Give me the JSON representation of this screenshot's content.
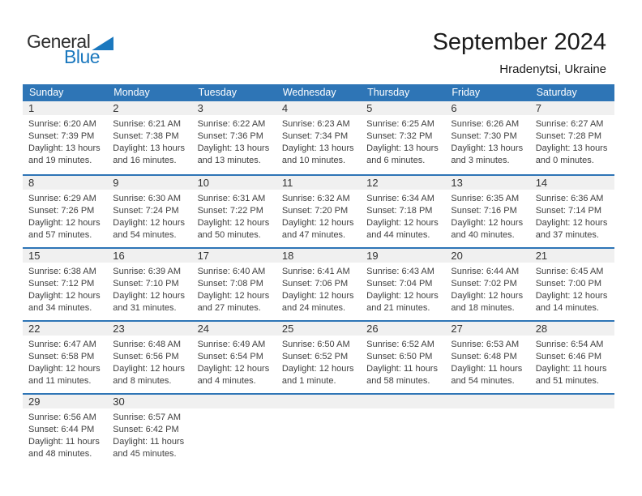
{
  "logo": {
    "general": "General",
    "blue": "Blue"
  },
  "header": {
    "title": "September 2024",
    "subtitle": "Hradenytsi, Ukraine"
  },
  "colors": {
    "accent": "#2E75B6",
    "band": "#F0F0F0",
    "logo_blue": "#1B78BE"
  },
  "icons": {
    "logo_triangle": "blue-right-triangle"
  },
  "weekday_headers": [
    "Sunday",
    "Monday",
    "Tuesday",
    "Wednesday",
    "Thursday",
    "Friday",
    "Saturday"
  ],
  "weeks": [
    [
      {
        "day": "1",
        "lines": [
          "Sunrise: 6:20 AM",
          "Sunset: 7:39 PM",
          "Daylight: 13 hours",
          "and 19 minutes."
        ]
      },
      {
        "day": "2",
        "lines": [
          "Sunrise: 6:21 AM",
          "Sunset: 7:38 PM",
          "Daylight: 13 hours",
          "and 16 minutes."
        ]
      },
      {
        "day": "3",
        "lines": [
          "Sunrise: 6:22 AM",
          "Sunset: 7:36 PM",
          "Daylight: 13 hours",
          "and 13 minutes."
        ]
      },
      {
        "day": "4",
        "lines": [
          "Sunrise: 6:23 AM",
          "Sunset: 7:34 PM",
          "Daylight: 13 hours",
          "and 10 minutes."
        ]
      },
      {
        "day": "5",
        "lines": [
          "Sunrise: 6:25 AM",
          "Sunset: 7:32 PM",
          "Daylight: 13 hours",
          "and 6 minutes."
        ]
      },
      {
        "day": "6",
        "lines": [
          "Sunrise: 6:26 AM",
          "Sunset: 7:30 PM",
          "Daylight: 13 hours",
          "and 3 minutes."
        ]
      },
      {
        "day": "7",
        "lines": [
          "Sunrise: 6:27 AM",
          "Sunset: 7:28 PM",
          "Daylight: 13 hours",
          "and 0 minutes."
        ]
      }
    ],
    [
      {
        "day": "8",
        "lines": [
          "Sunrise: 6:29 AM",
          "Sunset: 7:26 PM",
          "Daylight: 12 hours",
          "and 57 minutes."
        ]
      },
      {
        "day": "9",
        "lines": [
          "Sunrise: 6:30 AM",
          "Sunset: 7:24 PM",
          "Daylight: 12 hours",
          "and 54 minutes."
        ]
      },
      {
        "day": "10",
        "lines": [
          "Sunrise: 6:31 AM",
          "Sunset: 7:22 PM",
          "Daylight: 12 hours",
          "and 50 minutes."
        ]
      },
      {
        "day": "11",
        "lines": [
          "Sunrise: 6:32 AM",
          "Sunset: 7:20 PM",
          "Daylight: 12 hours",
          "and 47 minutes."
        ]
      },
      {
        "day": "12",
        "lines": [
          "Sunrise: 6:34 AM",
          "Sunset: 7:18 PM",
          "Daylight: 12 hours",
          "and 44 minutes."
        ]
      },
      {
        "day": "13",
        "lines": [
          "Sunrise: 6:35 AM",
          "Sunset: 7:16 PM",
          "Daylight: 12 hours",
          "and 40 minutes."
        ]
      },
      {
        "day": "14",
        "lines": [
          "Sunrise: 6:36 AM",
          "Sunset: 7:14 PM",
          "Daylight: 12 hours",
          "and 37 minutes."
        ]
      }
    ],
    [
      {
        "day": "15",
        "lines": [
          "Sunrise: 6:38 AM",
          "Sunset: 7:12 PM",
          "Daylight: 12 hours",
          "and 34 minutes."
        ]
      },
      {
        "day": "16",
        "lines": [
          "Sunrise: 6:39 AM",
          "Sunset: 7:10 PM",
          "Daylight: 12 hours",
          "and 31 minutes."
        ]
      },
      {
        "day": "17",
        "lines": [
          "Sunrise: 6:40 AM",
          "Sunset: 7:08 PM",
          "Daylight: 12 hours",
          "and 27 minutes."
        ]
      },
      {
        "day": "18",
        "lines": [
          "Sunrise: 6:41 AM",
          "Sunset: 7:06 PM",
          "Daylight: 12 hours",
          "and 24 minutes."
        ]
      },
      {
        "day": "19",
        "lines": [
          "Sunrise: 6:43 AM",
          "Sunset: 7:04 PM",
          "Daylight: 12 hours",
          "and 21 minutes."
        ]
      },
      {
        "day": "20",
        "lines": [
          "Sunrise: 6:44 AM",
          "Sunset: 7:02 PM",
          "Daylight: 12 hours",
          "and 18 minutes."
        ]
      },
      {
        "day": "21",
        "lines": [
          "Sunrise: 6:45 AM",
          "Sunset: 7:00 PM",
          "Daylight: 12 hours",
          "and 14 minutes."
        ]
      }
    ],
    [
      {
        "day": "22",
        "lines": [
          "Sunrise: 6:47 AM",
          "Sunset: 6:58 PM",
          "Daylight: 12 hours",
          "and 11 minutes."
        ]
      },
      {
        "day": "23",
        "lines": [
          "Sunrise: 6:48 AM",
          "Sunset: 6:56 PM",
          "Daylight: 12 hours",
          "and 8 minutes."
        ]
      },
      {
        "day": "24",
        "lines": [
          "Sunrise: 6:49 AM",
          "Sunset: 6:54 PM",
          "Daylight: 12 hours",
          "and 4 minutes."
        ]
      },
      {
        "day": "25",
        "lines": [
          "Sunrise: 6:50 AM",
          "Sunset: 6:52 PM",
          "Daylight: 12 hours",
          "and 1 minute."
        ]
      },
      {
        "day": "26",
        "lines": [
          "Sunrise: 6:52 AM",
          "Sunset: 6:50 PM",
          "Daylight: 11 hours",
          "and 58 minutes."
        ]
      },
      {
        "day": "27",
        "lines": [
          "Sunrise: 6:53 AM",
          "Sunset: 6:48 PM",
          "Daylight: 11 hours",
          "and 54 minutes."
        ]
      },
      {
        "day": "28",
        "lines": [
          "Sunrise: 6:54 AM",
          "Sunset: 6:46 PM",
          "Daylight: 11 hours",
          "and 51 minutes."
        ]
      }
    ],
    [
      {
        "day": "29",
        "lines": [
          "Sunrise: 6:56 AM",
          "Sunset: 6:44 PM",
          "Daylight: 11 hours",
          "and 48 minutes."
        ]
      },
      {
        "day": "30",
        "lines": [
          "Sunrise: 6:57 AM",
          "Sunset: 6:42 PM",
          "Daylight: 11 hours",
          "and 45 minutes."
        ]
      },
      null,
      null,
      null,
      null,
      null
    ]
  ]
}
